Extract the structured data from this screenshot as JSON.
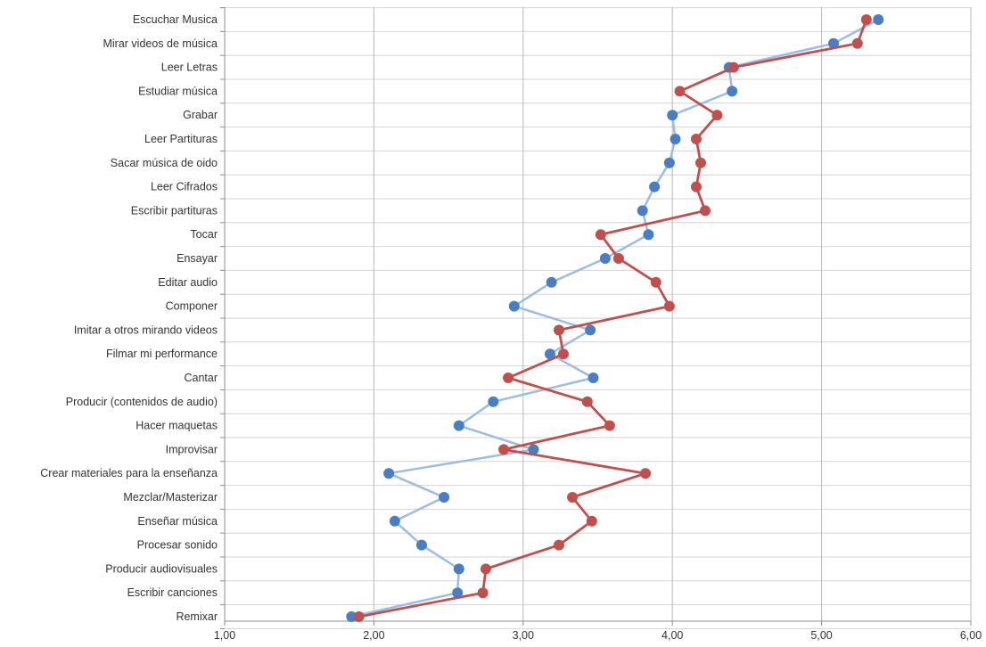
{
  "chart_data": {
    "type": "line",
    "orientation": "horizontal-values",
    "title": "",
    "xlabel": "",
    "ylabel": "",
    "xlim": [
      1.0,
      6.0
    ],
    "x_ticks": [
      1,
      2,
      3,
      4,
      5,
      6
    ],
    "x_tick_labels": [
      "1,00",
      "2,00",
      "3,00",
      "4,00",
      "5,00",
      "6,00"
    ],
    "grid": true,
    "legend": "none",
    "categories": [
      "Escuchar Musica",
      "Mirar videos de música",
      "Leer Letras",
      "Estudiar música",
      "Grabar",
      "Leer Partituras",
      "Sacar música de oido",
      "Leer Cifrados",
      "Escribir partituras",
      "Tocar",
      "Ensayar",
      "Editar audio",
      "Componer",
      "Imitar a otros mirando videos",
      "Filmar mi performance",
      "Cantar",
      "Producir (contenidos de audio)",
      "Hacer maquetas",
      "Improvisar",
      "Crear materiales para la enseñanza",
      "Mezclar/Masterizar",
      "Enseñar música",
      "Procesar sonido",
      "Producir audiovisuales",
      "Escribir canciones",
      "Remixar"
    ],
    "series": [
      {
        "color": "#4a7ec4",
        "line_color": "#9ebbe2",
        "values": [
          5.38,
          5.08,
          4.38,
          4.4,
          4.0,
          4.02,
          3.98,
          3.88,
          3.8,
          3.84,
          3.55,
          3.19,
          2.94,
          3.45,
          3.18,
          3.47,
          2.8,
          2.57,
          3.07,
          2.1,
          2.47,
          2.14,
          2.32,
          2.57,
          2.56,
          1.85
        ]
      },
      {
        "color": "#c0504d",
        "line_color": "#c0504d",
        "values": [
          5.3,
          5.24,
          4.41,
          4.05,
          4.3,
          4.16,
          4.19,
          4.16,
          4.22,
          3.52,
          3.64,
          3.89,
          3.98,
          3.24,
          3.27,
          2.9,
          3.43,
          3.58,
          2.87,
          3.82,
          3.33,
          3.46,
          3.24,
          2.75,
          2.73,
          1.9
        ]
      }
    ]
  }
}
